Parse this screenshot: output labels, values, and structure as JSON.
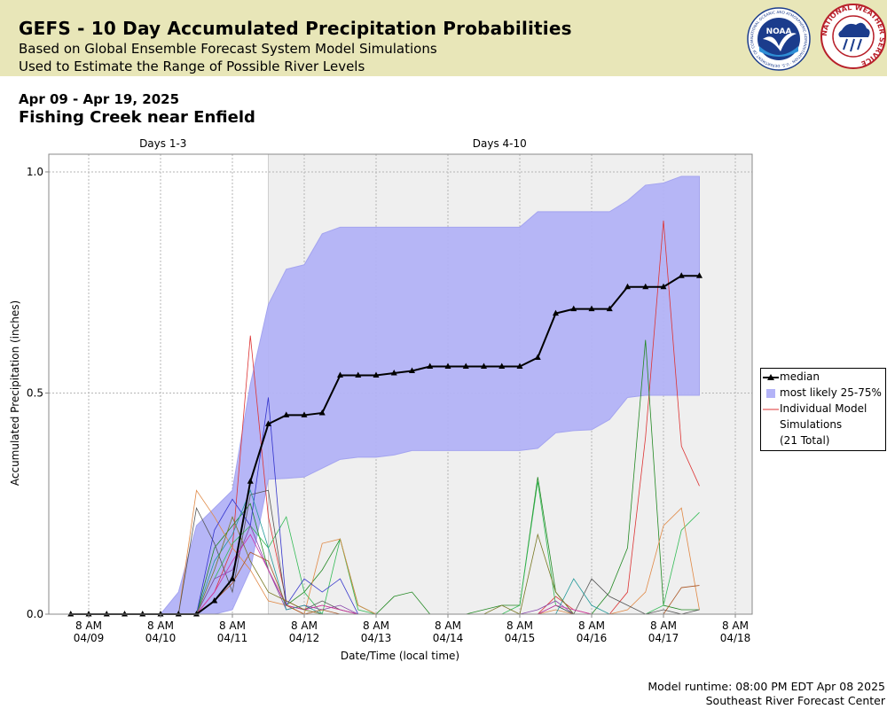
{
  "header": {
    "title": "GEFS - 10 Day Accumulated Precipitation Probabilities",
    "subtitle1": "Based on Global Ensemble Forecast System Model Simulations",
    "subtitle2": "Used to Estimate the Range of Possible River Levels",
    "noaa_logo_text": "NOAA",
    "noaa_ring_text": "NATIONAL OCEANIC AND ATMOSPHERIC ADMINISTRATION · U.S. DEPARTMENT OF COMMERCE",
    "nws_ring_text": "NATIONAL WEATHER SERVICE"
  },
  "date_range": "Apr 09 - Apr 19, 2025",
  "location": "Fishing Creek near Enfield",
  "footer": {
    "runtime": "Model runtime: 08:00 PM EDT Apr 08 2025",
    "center": "Southeast River Forecast Center"
  },
  "legend": {
    "median": "median",
    "range": "most likely 25-75%",
    "individual_line1": "Individual Model",
    "individual_line2": "Simulations",
    "individual_line3": "(21 Total)"
  },
  "colors": {
    "header_bg": "#e8e6b8",
    "band_fill": "#b3b3f7",
    "band_edge": "#a0a0f0",
    "median": "#000000",
    "shaded_region": "#efefef"
  },
  "chart_data": {
    "type": "line",
    "xlabel": "Date/Time (local time)",
    "ylabel": "Accumulated Precipitation (inches)",
    "ylim": [
      0,
      1.04
    ],
    "yticks": [
      "0.0",
      "0.5",
      "1.0"
    ],
    "x_tick_top": "8 AM",
    "x_tick_dates": [
      "04/09",
      "04/10",
      "04/11",
      "04/12",
      "04/13",
      "04/14",
      "04/15",
      "04/16",
      "04/17",
      "04/18"
    ],
    "regions": [
      {
        "label": "Days 1-3",
        "shaded": false
      },
      {
        "label": "Days 4-10",
        "shaded": true
      }
    ],
    "region_split_day": 2.5,
    "grid": true,
    "legend_position": "right",
    "x_units": "days after 04/09 8 AM",
    "series": [
      {
        "name": "median",
        "x": [
          -0.25,
          0,
          0.25,
          0.5,
          0.75,
          1.0,
          1.25,
          1.5,
          1.75,
          2.0,
          2.25,
          2.5,
          2.75,
          3.0,
          3.25,
          3.5,
          3.75,
          4.0,
          4.25,
          4.5,
          4.75,
          5.0,
          5.25,
          5.5,
          5.75,
          6.0,
          6.25,
          6.5,
          6.75,
          7.0,
          7.25,
          7.5,
          7.75,
          8.0,
          8.25,
          8.5
        ],
        "values": [
          0,
          0,
          0,
          0,
          0,
          0,
          0,
          0,
          0.03,
          0.08,
          0.3,
          0.43,
          0.45,
          0.45,
          0.455,
          0.54,
          0.54,
          0.54,
          0.545,
          0.55,
          0.56,
          0.56,
          0.56,
          0.56,
          0.56,
          0.56,
          0.58,
          0.68,
          0.69,
          0.69,
          0.69,
          0.74,
          0.74,
          0.74,
          0.765,
          0.765
        ]
      },
      {
        "name": "most likely 25-75%",
        "x": [
          1.0,
          1.25,
          1.5,
          1.75,
          2.0,
          2.25,
          2.5,
          2.75,
          3.0,
          3.25,
          3.5,
          3.75,
          4.0,
          4.25,
          4.5,
          4.75,
          5.0,
          5.25,
          5.5,
          5.75,
          6.0,
          6.25,
          6.5,
          6.75,
          7.0,
          7.25,
          7.5,
          7.75,
          8.0,
          8.25,
          8.5
        ],
        "upper": [
          0.0,
          0.05,
          0.2,
          0.24,
          0.28,
          0.52,
          0.7,
          0.78,
          0.79,
          0.86,
          0.875,
          0.875,
          0.875,
          0.875,
          0.875,
          0.875,
          0.875,
          0.875,
          0.875,
          0.875,
          0.875,
          0.91,
          0.91,
          0.91,
          0.91,
          0.91,
          0.935,
          0.97,
          0.975,
          0.99,
          0.99
        ],
        "lower": [
          0.0,
          0.0,
          0.0,
          0.0,
          0.01,
          0.1,
          0.305,
          0.307,
          0.31,
          0.33,
          0.35,
          0.355,
          0.355,
          0.36,
          0.37,
          0.37,
          0.37,
          0.37,
          0.37,
          0.37,
          0.37,
          0.375,
          0.41,
          0.415,
          0.417,
          0.44,
          0.49,
          0.495,
          0.495,
          0.495,
          0.495
        ]
      },
      {
        "name": "Individual Model Simulations",
        "members": [
          {
            "color": "#dd3333",
            "x": [
              1.5,
              1.75,
              2.0,
              2.25,
              2.5,
              2.75,
              3.0,
              3.25,
              3.5,
              3.75,
              4.0,
              4.25,
              4.5,
              4.75,
              5.0,
              5.25,
              5.5,
              5.75,
              6.0,
              6.25,
              6.5,
              6.75,
              7.0,
              7.25,
              7.5,
              7.75,
              8.0,
              8.25,
              8.5
            ],
            "values": [
              0,
              0.05,
              0.15,
              0.63,
              0.22,
              0.03,
              0.01,
              0.02,
              0.01,
              0,
              0,
              0,
              0,
              0,
              0,
              0,
              0,
              0,
              0,
              0,
              0.04,
              0.01,
              0,
              0,
              0.05,
              0.4,
              0.89,
              0.38,
              0.29
            ]
          },
          {
            "color": "#228822",
            "x": [
              1.5,
              1.75,
              2.0,
              2.25,
              2.5,
              2.75,
              3.0,
              3.25,
              3.5,
              3.75,
              4.0,
              4.25,
              4.5,
              4.75,
              5.0,
              5.25,
              5.5,
              5.75,
              6.0,
              6.25,
              6.5,
              6.75,
              7.0,
              7.25,
              7.5,
              7.75,
              8.0,
              8.25,
              8.5
            ],
            "values": [
              0,
              0.15,
              0.2,
              0.25,
              0.1,
              0.02,
              0.05,
              0.1,
              0.17,
              0.02,
              0,
              0.04,
              0.05,
              0,
              0,
              0,
              0.01,
              0.02,
              0.02,
              0.31,
              0.05,
              0,
              0,
              0.05,
              0.15,
              0.62,
              0.02,
              0.01,
              0.01
            ]
          },
          {
            "color": "#33bb55",
            "x": [
              1.5,
              1.75,
              2.0,
              2.25,
              2.5,
              2.75,
              3.0,
              3.25,
              3.5,
              3.75,
              4.0,
              4.25,
              4.5,
              4.75,
              5.0,
              5.25,
              5.5,
              5.75,
              6.0,
              6.25,
              6.5,
              6.75,
              7.0,
              7.25,
              7.5,
              7.75,
              8.0,
              8.25,
              8.5
            ],
            "values": [
              0,
              0.08,
              0.16,
              0.2,
              0.15,
              0.22,
              0.05,
              0,
              0.17,
              0.01,
              0,
              0,
              0,
              0,
              0,
              0,
              0,
              0,
              0.02,
              0.3,
              0.02,
              0,
              0,
              0,
              0,
              0,
              0.02,
              0.19,
              0.23
            ]
          },
          {
            "color": "#e08844",
            "x": [
              1.25,
              1.5,
              1.75,
              2.0,
              2.25,
              2.5,
              2.75,
              3.0,
              3.25,
              3.5,
              3.75,
              4.0,
              4.25,
              4.5,
              4.75,
              5.0,
              5.25,
              5.5,
              5.75,
              6.0,
              6.25,
              6.5,
              6.75,
              7.0,
              7.25,
              7.5,
              7.75,
              8.0,
              8.25,
              8.5
            ],
            "values": [
              0,
              0.28,
              0.22,
              0.15,
              0.1,
              0.03,
              0.02,
              0,
              0.16,
              0.17,
              0.02,
              0,
              0,
              0,
              0,
              0,
              0,
              0,
              0,
              0,
              0,
              0.01,
              0,
              0,
              0,
              0.01,
              0.05,
              0.2,
              0.24,
              0.01
            ]
          },
          {
            "color": "#555555",
            "x": [
              1.25,
              1.5,
              1.75,
              2.0,
              2.25,
              2.5,
              2.75,
              3.0,
              3.25,
              3.5,
              3.75,
              4.0,
              4.25,
              4.5,
              4.75,
              5.0,
              5.25,
              5.5,
              5.75,
              6.0,
              6.25,
              6.5,
              6.75,
              7.0,
              7.25,
              7.5,
              7.75,
              8.0,
              8.25,
              8.5
            ],
            "values": [
              0,
              0.24,
              0.16,
              0.05,
              0.27,
              0.28,
              0.02,
              0.01,
              0.03,
              0.01,
              0,
              0,
              0,
              0,
              0,
              0,
              0,
              0,
              0,
              0,
              0,
              0.02,
              0,
              0.08,
              0.04,
              0.02,
              0,
              0.01,
              0,
              0.01
            ]
          },
          {
            "color": "#3333cc",
            "x": [
              1.5,
              1.75,
              2.0,
              2.25,
              2.5,
              2.75,
              3.0,
              3.25,
              3.5,
              3.75,
              4.0,
              4.25,
              4.5,
              4.75,
              5.0,
              5.25,
              5.5,
              5.75,
              6.0,
              6.25,
              6.5,
              6.75,
              7.0,
              7.25,
              7.5,
              7.75,
              8.0,
              8.25,
              8.5
            ],
            "values": [
              0,
              0.19,
              0.26,
              0.2,
              0.49,
              0.02,
              0.08,
              0.05,
              0.08,
              0,
              0,
              0,
              0,
              0,
              0,
              0,
              0,
              0,
              0,
              0,
              0,
              0,
              0,
              0,
              0,
              0,
              0,
              0,
              0
            ]
          },
          {
            "color": "#8844aa",
            "x": [
              1.5,
              1.75,
              2.0,
              2.25,
              2.5,
              2.75,
              3.0,
              3.25,
              3.5,
              3.75,
              4.0,
              4.25,
              4.5,
              4.75,
              5.0,
              5.25,
              5.5,
              5.75,
              6.0,
              6.25,
              6.5,
              6.75,
              7.0,
              7.25,
              7.5,
              7.75,
              8.0,
              8.25,
              8.5
            ],
            "values": [
              0,
              0.08,
              0.1,
              0.2,
              0.1,
              0.01,
              0.02,
              0.01,
              0.02,
              0,
              0,
              0,
              0,
              0,
              0,
              0,
              0,
              0,
              0,
              0.01,
              0.03,
              0,
              0,
              0,
              0,
              0,
              0,
              0,
              0
            ]
          },
          {
            "color": "#cc33aa",
            "x": [
              1.5,
              1.75,
              2.0,
              2.25,
              2.5,
              2.75,
              3.0,
              3.25,
              3.5,
              3.75,
              4.0,
              4.25,
              4.5,
              4.75,
              5.0,
              5.25,
              5.5,
              5.75,
              6.0,
              6.25,
              6.5,
              6.75,
              7.0,
              7.25,
              7.5,
              7.75,
              8.0,
              8.25,
              8.5
            ],
            "values": [
              0,
              0.05,
              0.12,
              0.18,
              0.1,
              0.02,
              0.01,
              0.02,
              0.01,
              0,
              0,
              0,
              0,
              0,
              0,
              0,
              0,
              0,
              0,
              0,
              0.02,
              0.01,
              0,
              0,
              0,
              0,
              0,
              0,
              0
            ]
          },
          {
            "color": "#229999",
            "x": [
              1.5,
              1.75,
              2.0,
              2.25,
              2.5,
              2.75,
              3.0,
              3.25,
              3.5,
              3.75,
              4.0,
              4.25,
              4.5,
              4.75,
              5.0,
              5.25,
              5.5,
              5.75,
              6.0,
              6.25,
              6.5,
              6.75,
              7.0,
              7.25,
              7.5,
              7.75,
              8.0,
              8.25,
              8.5
            ],
            "values": [
              0,
              0.12,
              0.18,
              0.28,
              0.15,
              0.01,
              0.02,
              0,
              0,
              0,
              0,
              0,
              0,
              0,
              0,
              0,
              0,
              0,
              0,
              0,
              0,
              0.08,
              0.02,
              0,
              0,
              0,
              0,
              0,
              0
            ]
          },
          {
            "color": "#777722",
            "x": [
              1.5,
              1.75,
              2.0,
              2.25,
              2.5,
              2.75,
              3.0,
              3.25,
              3.5,
              3.75,
              4.0,
              4.25,
              4.5,
              4.75,
              5.0,
              5.25,
              5.5,
              5.75,
              6.0,
              6.25,
              6.5,
              6.75,
              7.0,
              7.25,
              7.5,
              7.75,
              8.0,
              8.25,
              8.5
            ],
            "values": [
              0,
              0.1,
              0.22,
              0.12,
              0.05,
              0.03,
              0.01,
              0,
              0,
              0,
              0,
              0,
              0,
              0,
              0,
              0,
              0,
              0.02,
              0,
              0.18,
              0.05,
              0,
              0,
              0,
              0,
              0,
              0,
              0,
              0
            ]
          },
          {
            "color": "#aa5522",
            "x": [
              1.5,
              1.75,
              2.0,
              2.25,
              2.5,
              2.75,
              3.0,
              3.25,
              3.5,
              3.75,
              4.0,
              4.25,
              4.5,
              4.75,
              5.0,
              5.25,
              5.5,
              5.75,
              6.0,
              6.25,
              6.5,
              6.75,
              7.0,
              7.25,
              7.5,
              7.75,
              8.0,
              8.25,
              8.5
            ],
            "values": [
              0,
              0.03,
              0.07,
              0.14,
              0.12,
              0.02,
              0,
              0.01,
              0,
              0,
              0,
              0,
              0,
              0,
              0,
              0,
              0,
              0,
              0,
              0,
              0,
              0,
              0,
              0,
              0,
              0,
              0,
              0.06,
              0.065
            ]
          }
        ]
      }
    ]
  }
}
